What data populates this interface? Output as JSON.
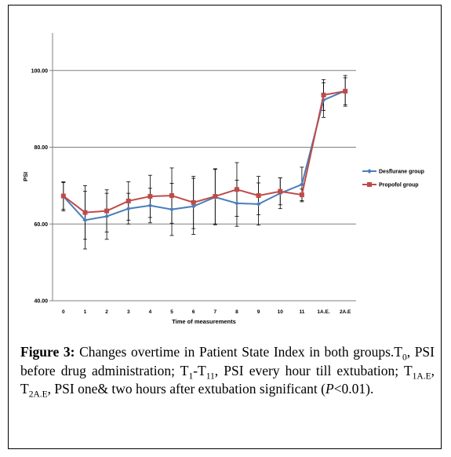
{
  "chart_data": {
    "type": "line",
    "categories": [
      "0",
      "1",
      "2",
      "3",
      "4",
      "5",
      "6",
      "7",
      "8",
      "9",
      "10",
      "11",
      "1A.E.",
      "2A.E"
    ],
    "xlabel": "Time of measurements",
    "ylabel": "PSI",
    "ylim": [
      40,
      110
    ],
    "yticks": [
      40,
      60,
      80,
      100
    ],
    "ytick_labels": [
      "40.00",
      "60.00",
      "80.00",
      "100.00"
    ],
    "grid": "horizontal",
    "legend_position": "right",
    "series": [
      {
        "name": "Desflurane group",
        "color": "#4a7ebb",
        "marker": "diamond",
        "values": [
          67.2,
          61.0,
          62.0,
          64.0,
          64.8,
          63.8,
          64.6,
          67.0,
          65.4,
          65.2,
          68.0,
          70.3,
          92.3,
          94.7
        ],
        "err": [
          3.8,
          7.5,
          6.0,
          4.0,
          4.5,
          6.8,
          7.3,
          7.2,
          6.0,
          5.5,
          4.0,
          4.5,
          4.5,
          4.0
        ]
      },
      {
        "name": "Propofol group",
        "color": "#be4b48",
        "marker": "square",
        "values": [
          67.3,
          63.0,
          63.4,
          66.0,
          67.2,
          67.4,
          65.6,
          67.2,
          69.0,
          67.4,
          68.5,
          67.6,
          93.6,
          94.6
        ],
        "err": [
          3.5,
          7.0,
          5.5,
          5.0,
          5.5,
          7.2,
          6.8,
          7.2,
          7.0,
          5.0,
          3.5,
          1.5,
          4.0,
          3.5
        ]
      }
    ]
  },
  "caption": {
    "label": "Figure 3:",
    "p1": " Changes overtime in Patient State Index in both groups.T",
    "s1": "0",
    "p2": ", PSI before drug administration; T",
    "s2": "1",
    "p3": "-T",
    "s3": "11",
    "p4": ", PSI every hour till extubation; T",
    "s4": "1A.E",
    "p5": ", T",
    "s5": "2A.E",
    "p6": ", PSI one& two hours after extubation significant (",
    "italic": "P",
    "p7": "<0.01)."
  }
}
